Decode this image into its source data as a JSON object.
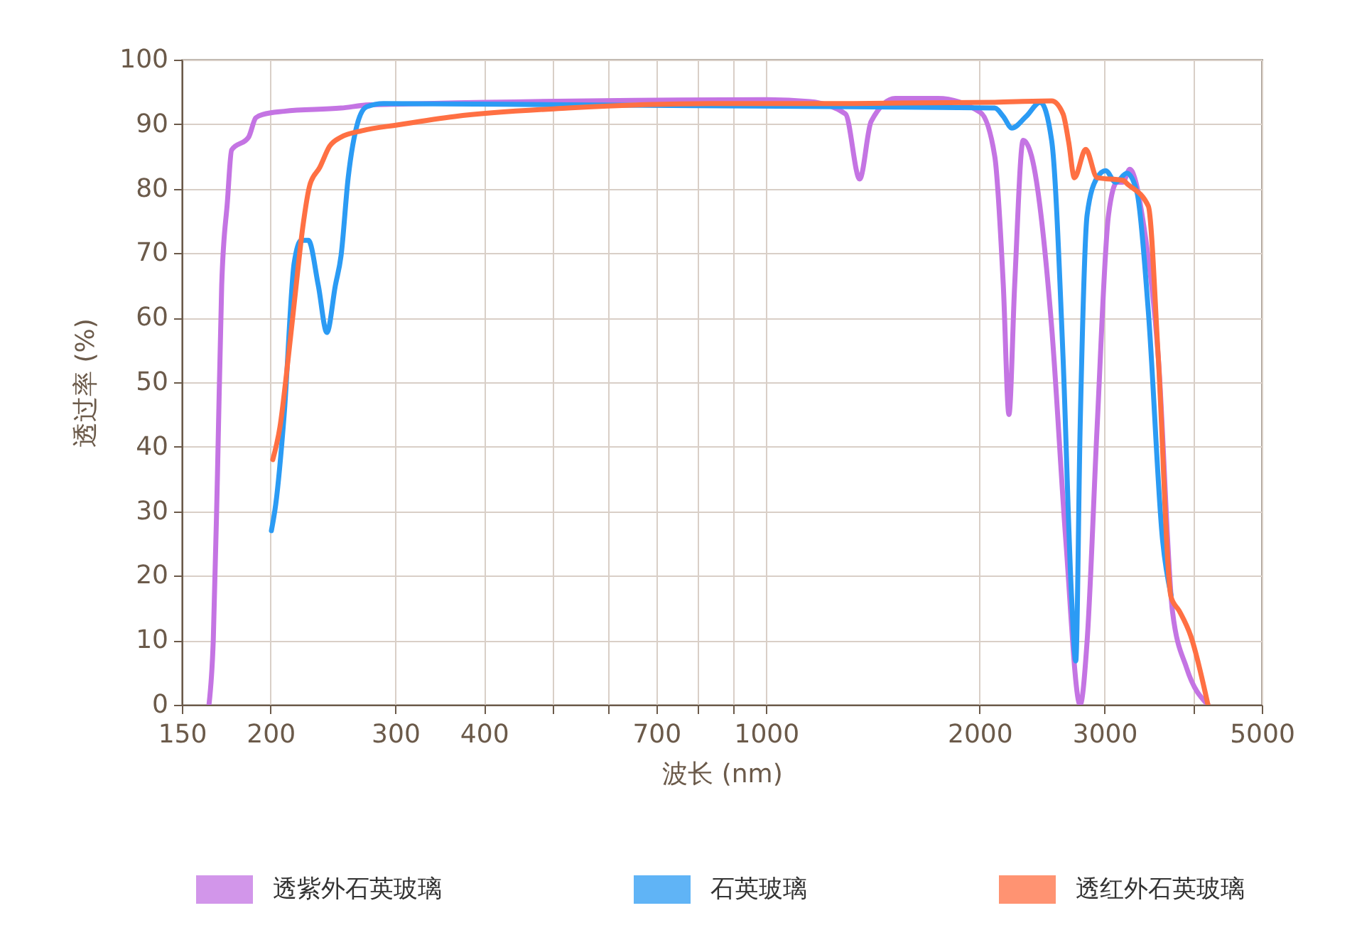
{
  "chart_data": {
    "type": "line",
    "xlabel": "波长 (nm)",
    "ylabel": "透过率 (%)",
    "log": "x",
    "grid": true,
    "legend": "bottom",
    "marker": "none",
    "line_style": "solid",
    "xlim": [
      150,
      5000
    ],
    "ylim": [
      0,
      100
    ],
    "xticks": [
      150,
      200,
      300,
      400,
      {
        "value": 500,
        "label": null
      },
      {
        "value": 600,
        "label": null
      },
      700,
      {
        "value": 800,
        "label": null
      },
      {
        "value": 900,
        "label": null
      },
      1000,
      2000,
      3000,
      {
        "value": 4000,
        "label": null
      },
      5000
    ],
    "yticks": [
      0,
      10,
      20,
      30,
      40,
      50,
      60,
      70,
      80,
      90,
      100
    ],
    "series": [
      {
        "name": "透紫外石英玻璃",
        "color": "#c474e3",
        "x": [
          163.8,
          166.1,
          168.4,
          170.7,
          173.9,
          176.3,
          186.3,
          190.7,
          195.1,
          209.1,
          251.5,
          275.8,
          331.8,
          1004,
          1153,
          1294,
          1355,
          1406,
          1521,
          1747,
          2006,
          2101,
          2160,
          2200,
          2241,
          2304,
          2368,
          2527,
          2646,
          2772,
          2836,
          2929,
          3040,
          3125,
          3183,
          3257,
          3411,
          3572,
          3741,
          3917,
          4198
        ],
        "values": [
          0,
          10,
          36,
          65,
          78,
          86,
          88,
          91,
          91.5,
          92,
          92.5,
          93,
          93.2,
          93.8,
          93.5,
          91.6,
          81.5,
          90.4,
          94,
          94,
          91.8,
          85,
          65,
          45,
          65,
          87.5,
          85,
          58.6,
          25.5,
          0,
          10,
          43,
          76,
          81,
          81,
          83,
          74,
          54,
          14.5,
          5.7,
          0
        ]
      },
      {
        "name": "石英玻璃",
        "color": "#2b9bf4",
        "x": [
          200.6,
          203.4,
          209.1,
          216.0,
          221.0,
          226.2,
          233.6,
          240.2,
          246.9,
          251.5,
          257.4,
          265.9,
          273.3,
          288.8,
          526,
          1324,
          2101,
          2160,
          2221,
          2326,
          2436,
          2527,
          2622,
          2696,
          2733,
          2772,
          2836,
          2929,
          3011,
          3110,
          3227,
          3333,
          3459,
          3623,
          3724
        ],
        "values": [
          27,
          31,
          45,
          68.5,
          72,
          72,
          65,
          57.7,
          65,
          69.6,
          81.7,
          90.5,
          92.7,
          93.2,
          93,
          92.7,
          92.5,
          91.2,
          89.4,
          91.2,
          93.4,
          87.5,
          54,
          16.7,
          6.8,
          43,
          76,
          81.7,
          82.8,
          81,
          82.4,
          79.5,
          61,
          25.5,
          17
        ]
      },
      {
        "name": "透红外石英玻璃",
        "color": "#ff7043",
        "x": [
          201.5,
          206.2,
          212.0,
          216.9,
          222.1,
          227.3,
          234.7,
          242.4,
          251.5,
          269.6,
          302.5,
          363.9,
          526,
          835,
          1324,
          2101,
          2527,
          2622,
          2671,
          2721,
          2823,
          2929,
          3183,
          3242,
          3459,
          3572,
          3724,
          3827,
          3972,
          4198
        ],
        "values": [
          38,
          43,
          54,
          64,
          74,
          80.6,
          83.3,
          86.6,
          88,
          89,
          89.9,
          91.2,
          92.5,
          93.2,
          93.2,
          93.4,
          93.6,
          91.6,
          87.2,
          81.7,
          86.1,
          81.7,
          81.3,
          80.6,
          77.3,
          54,
          16.7,
          14.5,
          10.6,
          0
        ]
      }
    ]
  }
}
